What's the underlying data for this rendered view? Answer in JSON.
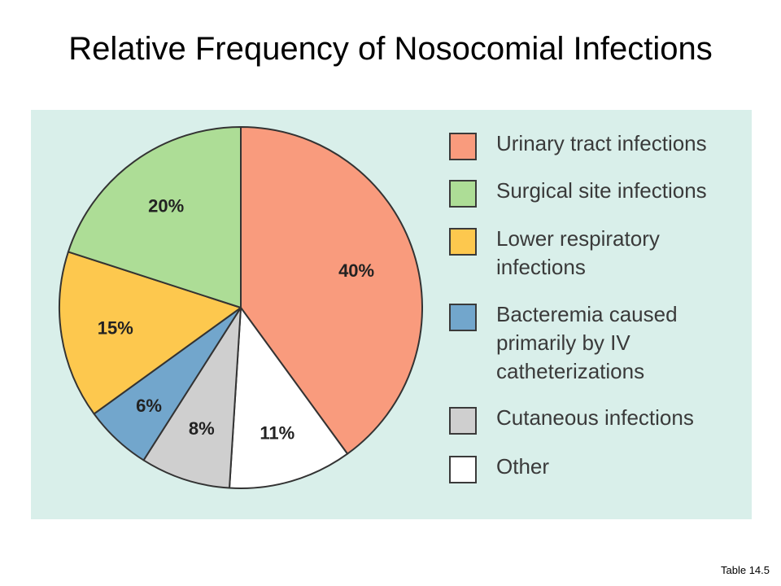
{
  "title": "Relative Frequency of Nosocomial Infections",
  "source_note": "Table 14.5",
  "panel_background": "#d9efea",
  "chart_data": {
    "type": "pie",
    "title": "Relative Frequency of Nosocomial Infections",
    "slices": [
      {
        "name": "Urinary tract infections",
        "value": 40,
        "label": "40%",
        "color": "#f99b7d"
      },
      {
        "name": "Other",
        "value": 11,
        "label": "11%",
        "color": "#ffffff"
      },
      {
        "name": "Cutaneous infections",
        "value": 8,
        "label": "8%",
        "color": "#cfcfcf"
      },
      {
        "name": "Bacteremia caused primarily by IV catheterizations",
        "value": 6,
        "label": "6%",
        "color": "#72a6cc"
      },
      {
        "name": "Lower respiratory infections",
        "value": 15,
        "label": "15%",
        "color": "#fdc84e"
      },
      {
        "name": "Surgical site infections",
        "value": 20,
        "label": "20%",
        "color": "#addd96"
      }
    ],
    "start_angle_deg": 0,
    "direction": "clockwise",
    "legend_position": "right",
    "legend": [
      {
        "label": "Urinary tract infections",
        "color": "#f99b7d"
      },
      {
        "label": "Surgical site infections",
        "color": "#addd96"
      },
      {
        "label": "Lower respiratory\ninfections",
        "color": "#fdc84e"
      },
      {
        "label": "Bacteremia caused\nprimarily by IV\ncatheterizations",
        "color": "#72a6cc"
      },
      {
        "label": "Cutaneous infections",
        "color": "#cfcfcf"
      },
      {
        "label": "Other",
        "color": "#ffffff"
      }
    ]
  }
}
